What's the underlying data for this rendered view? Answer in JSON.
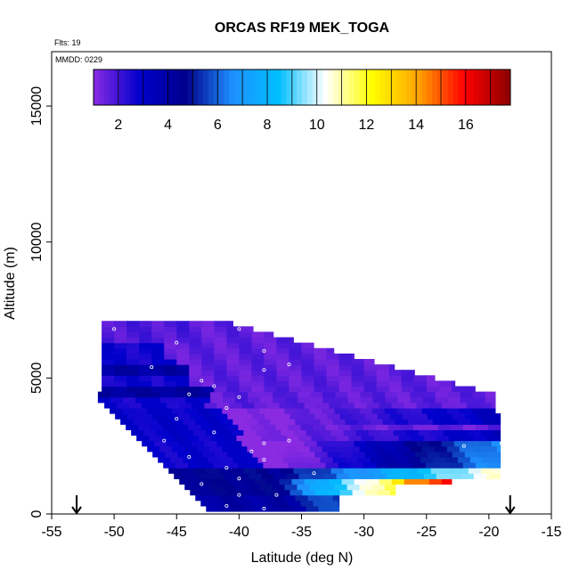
{
  "chart_data": {
    "type": "heatmap",
    "title": "ORCAS RF19 MEK_TOGA",
    "flights_label": "Flts: 19",
    "date_label": "MMDD: 0229",
    "xlabel": "Latitude (deg N)",
    "ylabel": "Altitude (m)",
    "xlim": [
      -55,
      -15
    ],
    "ylim": [
      0,
      17000
    ],
    "x_ticks": [
      -55,
      -50,
      -45,
      -40,
      -35,
      -30,
      -25,
      -20,
      -15
    ],
    "y_ticks": [
      0,
      5000,
      10000,
      15000
    ],
    "colorbar": {
      "min": 1,
      "max": 17.8,
      "ticks": [
        2,
        4,
        6,
        8,
        10,
        12,
        14,
        16
      ],
      "colors": [
        "#8a2be2",
        "#0000cd",
        "#00008b",
        "#1e90ff",
        "#00bfff",
        "#ffffff",
        "#ffff00",
        "#ffa500",
        "#ff0000",
        "#8b0000"
      ]
    },
    "flight_path_arrows_lat": [
      -53,
      -18.3
    ],
    "sample_points": [
      [
        -50,
        6800
      ],
      [
        -45,
        6300
      ],
      [
        -40,
        6800
      ],
      [
        -38,
        6000
      ],
      [
        -36,
        5500
      ],
      [
        -47,
        5400
      ],
      [
        -43,
        4900
      ],
      [
        -42,
        4700
      ],
      [
        -38,
        5300
      ],
      [
        -44,
        4400
      ],
      [
        -41,
        3900
      ],
      [
        -40,
        4300
      ],
      [
        -38,
        2600
      ],
      [
        -42,
        3000
      ],
      [
        -45,
        3500
      ],
      [
        -46,
        2700
      ],
      [
        -39,
        2300
      ],
      [
        -36,
        2700
      ],
      [
        -44,
        2100
      ],
      [
        -41,
        1700
      ],
      [
        -38,
        2000
      ],
      [
        -40,
        1300
      ],
      [
        -43,
        1100
      ],
      [
        -44,
        600
      ],
      [
        -40,
        700
      ],
      [
        -37,
        700
      ],
      [
        -41,
        300
      ],
      [
        -38,
        200
      ],
      [
        -44,
        200
      ],
      [
        -34,
        1500
      ],
      [
        -22,
        2500
      ],
      [
        -19,
        2600
      ],
      [
        -20,
        1400
      ],
      [
        -19,
        1000
      ],
      [
        -18.5,
        1000
      ]
    ]
  }
}
